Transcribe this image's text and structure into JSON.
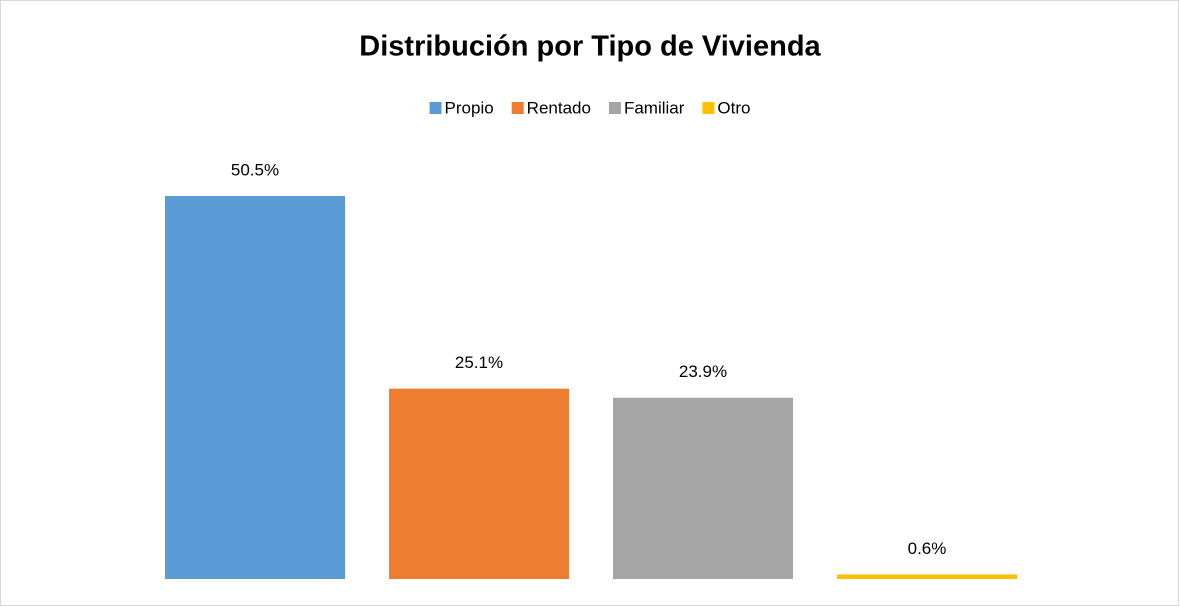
{
  "chart_data": {
    "type": "bar",
    "title": "Distribución por Tipo de Vivienda",
    "series": [
      {
        "name": "Propio",
        "color": "#5b9bd5",
        "values": [
          50.5
        ],
        "value_labels": [
          "50.5%"
        ]
      },
      {
        "name": "Rentado",
        "color": "#ed7d31",
        "values": [
          25.1
        ],
        "value_labels": [
          "25.1%"
        ]
      },
      {
        "name": "Familiar",
        "color": "#a5a5a5",
        "values": [
          23.9
        ],
        "value_labels": [
          "23.9%"
        ]
      },
      {
        "name": "Otro",
        "color": "#ffc000",
        "values": [
          0.6
        ],
        "value_labels": [
          "0.6%"
        ]
      }
    ],
    "legend": "top"
  }
}
